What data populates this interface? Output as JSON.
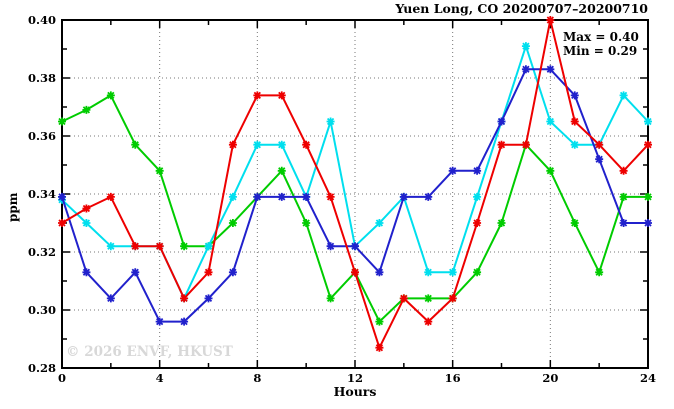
{
  "chart_data": {
    "type": "line",
    "title": "Yuen Long, CO 20200707–20200710",
    "xlabel": "Hours",
    "ylabel": "ppm",
    "xlim": [
      0,
      24
    ],
    "ylim": [
      0.28,
      0.4
    ],
    "x_major_ticks": [
      0,
      4,
      8,
      12,
      16,
      20,
      24
    ],
    "x_minor_tick_step": 2,
    "y_major_ticks": [
      0.28,
      0.3,
      0.32,
      0.34,
      0.36,
      0.38,
      0.4
    ],
    "y_minor_tick_step": 0.01,
    "grid": "dotted lines at major ticks, on",
    "legend_position": "top-right inside",
    "marker": "asterisk",
    "x": [
      0,
      1,
      2,
      3,
      4,
      5,
      6,
      7,
      8,
      9,
      10,
      11,
      12,
      13,
      14,
      15,
      16,
      17,
      18,
      19,
      20,
      21,
      22,
      23,
      24
    ],
    "series": [
      {
        "name": "series-green",
        "color": "#00cc00",
        "values": [
          0.365,
          0.369,
          0.374,
          0.357,
          0.348,
          0.322,
          0.322,
          0.33,
          0.339,
          0.348,
          0.33,
          0.304,
          0.313,
          0.296,
          0.304,
          0.304,
          0.304,
          0.313,
          0.33,
          0.357,
          0.348,
          0.33,
          0.313,
          0.339,
          0.339
        ]
      },
      {
        "name": "series-cyan",
        "color": "#00dfee",
        "values": [
          0.338,
          0.33,
          0.322,
          0.322,
          0.322,
          0.304,
          0.322,
          0.339,
          0.357,
          0.357,
          0.339,
          0.365,
          0.322,
          0.33,
          0.339,
          0.313,
          0.313,
          0.339,
          0.365,
          0.391,
          0.365,
          0.357,
          0.357,
          0.374,
          0.365
        ]
      },
      {
        "name": "series-blue",
        "color": "#2121cc",
        "values": [
          0.339,
          0.313,
          0.304,
          0.313,
          0.296,
          0.296,
          0.304,
          0.313,
          0.339,
          0.339,
          0.339,
          0.322,
          0.322,
          0.313,
          0.339,
          0.339,
          0.348,
          0.348,
          0.365,
          0.383,
          0.383,
          0.374,
          0.352,
          0.33,
          0.33
        ]
      },
      {
        "name": "series-red",
        "color": "#ee0000",
        "values": [
          0.33,
          0.335,
          0.339,
          0.322,
          0.322,
          0.304,
          0.313,
          0.357,
          0.374,
          0.374,
          0.357,
          0.339,
          0.313,
          0.287,
          0.304,
          0.296,
          0.304,
          0.33,
          0.357,
          0.357,
          0.4,
          0.365,
          0.357,
          0.348,
          0.357
        ]
      }
    ],
    "annotations": {
      "max_label": "Max = 0.40",
      "min_label": "Min = 0.29"
    },
    "watermark": "© 2026 ENVF, HKUST"
  }
}
